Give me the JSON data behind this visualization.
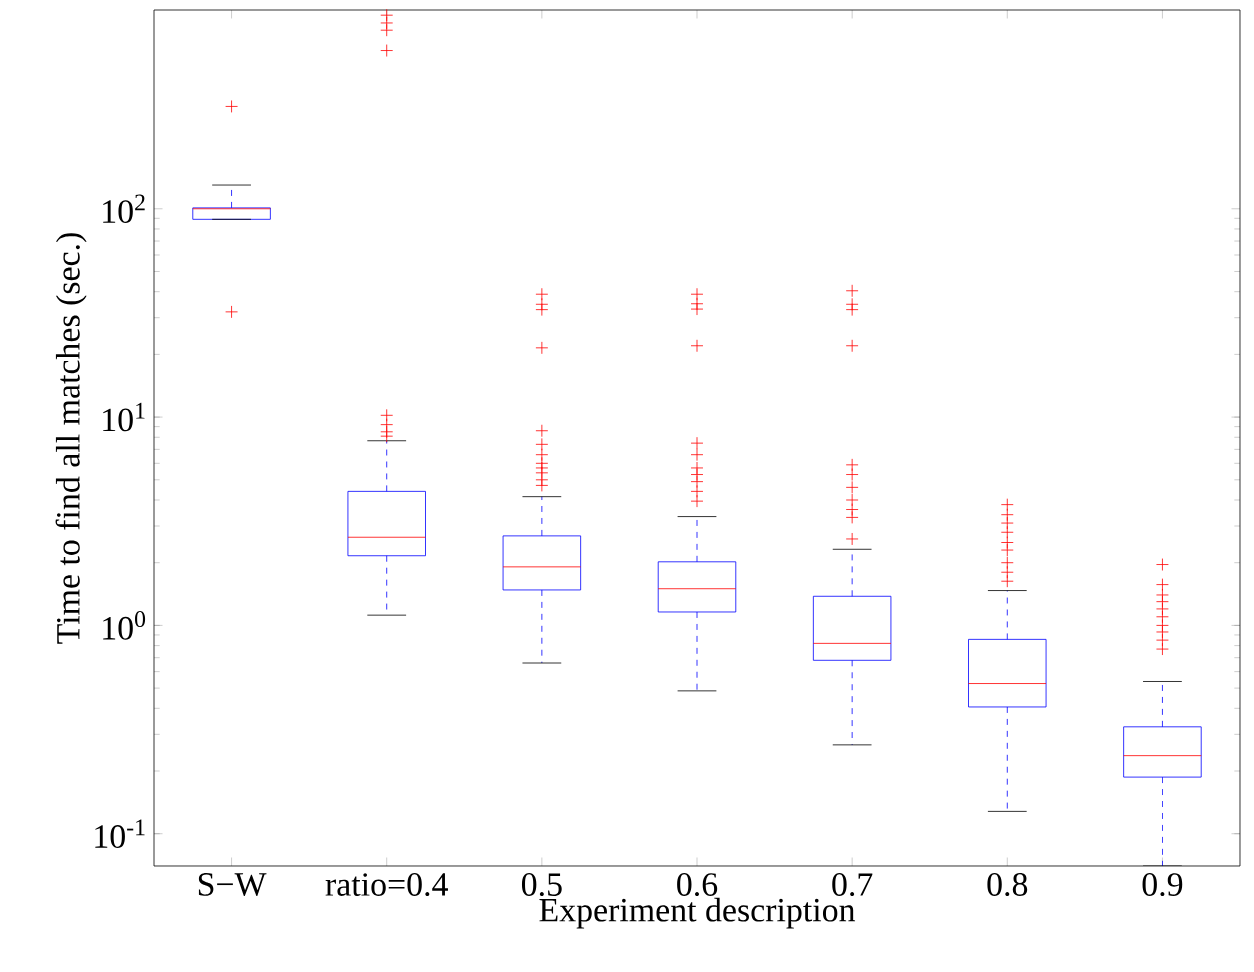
{
  "chart_data": {
    "type": "box",
    "xlabel": "Experiment description",
    "ylabel": "Time to find all matches (sec.)",
    "categories": [
      "S−W",
      "ratio=0.4",
      "0.5",
      "0.6",
      "0.7",
      "0.8",
      "0.9"
    ],
    "log": true,
    "ylim": [
      0.07,
      900
    ],
    "yticks": [
      {
        "value": 0.1,
        "label": "10$^{-1}$"
      },
      {
        "value": 1,
        "label": "10$^{0}$"
      },
      {
        "value": 10,
        "label": "10$^{1}$"
      },
      {
        "value": 100,
        "label": "10$^{2}$"
      }
    ],
    "marker": "cross",
    "series": [
      {
        "color": "#0000ff",
        "boxes": [
          {
            "low": 89,
            "q1": 89,
            "median": 100,
            "q3": 101,
            "high": 130,
            "outliers": [
              310,
              32
            ]
          },
          {
            "low": 1.12,
            "q1": 2.16,
            "median": 2.65,
            "q3": 4.4,
            "high": 7.7,
            "outliers": [
              850,
              780,
              720,
              575,
              10.2,
              9.2,
              8.5,
              8.1
            ]
          },
          {
            "low": 0.66,
            "q1": 1.48,
            "median": 1.91,
            "q3": 2.69,
            "high": 4.15,
            "outliers": [
              38.9,
              34.8,
              32.8,
              21.5,
              8.6,
              7.4,
              6.6,
              6.0,
              5.7,
              5.4,
              5.0,
              4.7
            ]
          },
          {
            "low": 0.485,
            "q1": 1.16,
            "median": 1.5,
            "q3": 2.02,
            "high": 3.33,
            "outliers": [
              38.9,
              35,
              33,
              22,
              7.5,
              6.6,
              5.7,
              5.3,
              4.9,
              4.4,
              3.95
            ]
          },
          {
            "low": 0.267,
            "q1": 0.68,
            "median": 0.82,
            "q3": 1.38,
            "high": 2.32,
            "outliers": [
              40.4,
              34.8,
              32.8,
              22,
              5.9,
              5.3,
              4.6,
              4.0,
              3.6,
              3.3,
              2.6
            ]
          },
          {
            "low": 0.128,
            "q1": 0.406,
            "median": 0.526,
            "q3": 0.857,
            "high": 1.47,
            "outliers": [
              3.8,
              3.4,
              3.1,
              2.8,
              2.5,
              2.3,
              2.0,
              1.8,
              1.63
            ]
          },
          {
            "low": 0.07,
            "q1": 0.187,
            "median": 0.237,
            "q3": 0.326,
            "high": 0.538,
            "outliers": [
              1.96,
              1.57,
              1.4,
              1.3,
              1.2,
              1.1,
              1.0,
              0.93,
              0.85,
              0.77
            ]
          }
        ]
      }
    ]
  }
}
